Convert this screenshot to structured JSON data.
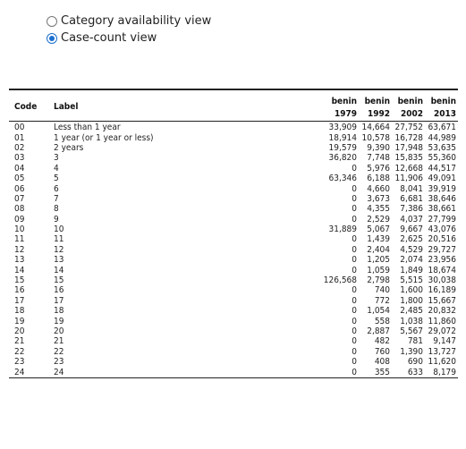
{
  "view_options": [
    {
      "label": "Category availability view",
      "selected": false
    },
    {
      "label": "Case-count view",
      "selected": true
    }
  ],
  "table": {
    "headers": {
      "code": "Code",
      "label": "Label",
      "samples": [
        {
          "country": "benin",
          "year": "1979"
        },
        {
          "country": "benin",
          "year": "1992"
        },
        {
          "country": "benin",
          "year": "2002"
        },
        {
          "country": "benin",
          "year": "2013"
        }
      ]
    },
    "rows": [
      {
        "code": "00",
        "label": "Less than 1 year",
        "v1979": "33,909",
        "v1992": "14,664",
        "v2002": "27,752",
        "v2013": "63,671"
      },
      {
        "code": "01",
        "label": "1 year (or 1 year or less)",
        "v1979": "18,914",
        "v1992": "10,578",
        "v2002": "16,728",
        "v2013": "44,989"
      },
      {
        "code": "02",
        "label": "2 years",
        "v1979": "19,579",
        "v1992": "9,390",
        "v2002": "17,948",
        "v2013": "53,635"
      },
      {
        "code": "03",
        "label": "3",
        "v1979": "36,820",
        "v1992": "7,748",
        "v2002": "15,835",
        "v2013": "55,360"
      },
      {
        "code": "04",
        "label": "4",
        "v1979": "0",
        "v1992": "5,976",
        "v2002": "12,668",
        "v2013": "44,517"
      },
      {
        "code": "05",
        "label": "5",
        "v1979": "63,346",
        "v1992": "6,188",
        "v2002": "11,906",
        "v2013": "49,091"
      },
      {
        "code": "06",
        "label": "6",
        "v1979": "0",
        "v1992": "4,660",
        "v2002": "8,041",
        "v2013": "39,919"
      },
      {
        "code": "07",
        "label": "7",
        "v1979": "0",
        "v1992": "3,673",
        "v2002": "6,681",
        "v2013": "38,646"
      },
      {
        "code": "08",
        "label": "8",
        "v1979": "0",
        "v1992": "4,355",
        "v2002": "7,386",
        "v2013": "38,661"
      },
      {
        "code": "09",
        "label": "9",
        "v1979": "0",
        "v1992": "2,529",
        "v2002": "4,037",
        "v2013": "27,799"
      },
      {
        "code": "10",
        "label": "10",
        "v1979": "31,889",
        "v1992": "5,067",
        "v2002": "9,667",
        "v2013": "43,076"
      },
      {
        "code": "11",
        "label": "11",
        "v1979": "0",
        "v1992": "1,439",
        "v2002": "2,625",
        "v2013": "20,516"
      },
      {
        "code": "12",
        "label": "12",
        "v1979": "0",
        "v1992": "2,404",
        "v2002": "4,529",
        "v2013": "29,727"
      },
      {
        "code": "13",
        "label": "13",
        "v1979": "0",
        "v1992": "1,205",
        "v2002": "2,074",
        "v2013": "23,956"
      },
      {
        "code": "14",
        "label": "14",
        "v1979": "0",
        "v1992": "1,059",
        "v2002": "1,849",
        "v2013": "18,674"
      },
      {
        "code": "15",
        "label": "15",
        "v1979": "126,568",
        "v1992": "2,798",
        "v2002": "5,515",
        "v2013": "30,038"
      },
      {
        "code": "16",
        "label": "16",
        "v1979": "0",
        "v1992": "740",
        "v2002": "1,600",
        "v2013": "16,189"
      },
      {
        "code": "17",
        "label": "17",
        "v1979": "0",
        "v1992": "772",
        "v2002": "1,800",
        "v2013": "15,667"
      },
      {
        "code": "18",
        "label": "18",
        "v1979": "0",
        "v1992": "1,054",
        "v2002": "2,485",
        "v2013": "20,832"
      },
      {
        "code": "19",
        "label": "19",
        "v1979": "0",
        "v1992": "558",
        "v2002": "1,038",
        "v2013": "11,860"
      },
      {
        "code": "20",
        "label": "20",
        "v1979": "0",
        "v1992": "2,887",
        "v2002": "5,567",
        "v2013": "29,072"
      },
      {
        "code": "21",
        "label": "21",
        "v1979": "0",
        "v1992": "482",
        "v2002": "781",
        "v2013": "9,147"
      },
      {
        "code": "22",
        "label": "22",
        "v1979": "0",
        "v1992": "760",
        "v2002": "1,390",
        "v2013": "13,727"
      },
      {
        "code": "23",
        "label": "23",
        "v1979": "0",
        "v1992": "408",
        "v2002": "690",
        "v2013": "11,620"
      },
      {
        "code": "24",
        "label": "24",
        "v1979": "0",
        "v1992": "355",
        "v2002": "633",
        "v2013": "8,179"
      }
    ]
  }
}
